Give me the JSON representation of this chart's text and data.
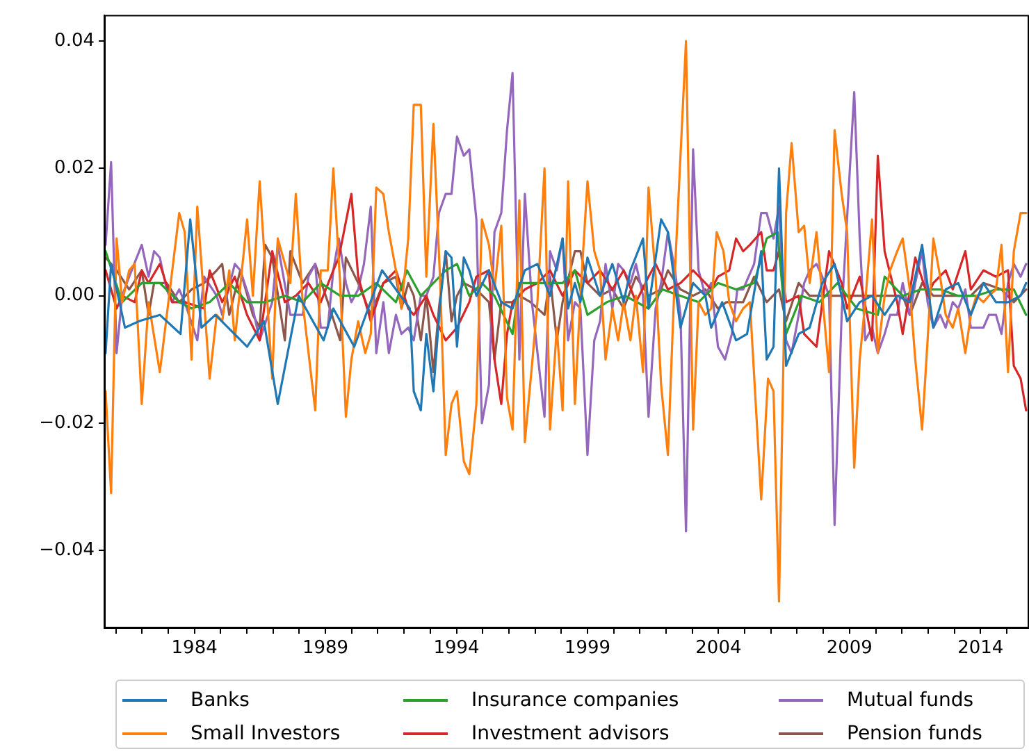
{
  "chart_data": {
    "type": "line",
    "xlim": [
      1980.56,
      2015.85
    ],
    "ylim": [
      -0.0522,
      0.0441
    ],
    "xticks": [
      {
        "value": 1981,
        "label": null
      },
      {
        "value": 1982,
        "label": null
      },
      {
        "value": 1983,
        "label": null
      },
      1984,
      {
        "value": 1985,
        "label": null
      },
      {
        "value": 1986,
        "label": null
      },
      {
        "value": 1987,
        "label": null
      },
      {
        "value": 1988,
        "label": null
      },
      1989,
      {
        "value": 1990,
        "label": null
      },
      {
        "value": 1991,
        "label": null
      },
      {
        "value": 1992,
        "label": null
      },
      {
        "value": 1993,
        "label": null
      },
      1994,
      {
        "value": 1995,
        "label": null
      },
      {
        "value": 1996,
        "label": null
      },
      {
        "value": 1997,
        "label": null
      },
      {
        "value": 1998,
        "label": null
      },
      1999,
      {
        "value": 2000,
        "label": null
      },
      {
        "value": 2001,
        "label": null
      },
      {
        "value": 2002,
        "label": null
      },
      {
        "value": 2003,
        "label": null
      },
      2004,
      {
        "value": 2005,
        "label": null
      },
      {
        "value": 2006,
        "label": null
      },
      {
        "value": 2007,
        "label": null
      },
      {
        "value": 2008,
        "label": null
      },
      2009,
      {
        "value": 2010,
        "label": null
      },
      {
        "value": 2011,
        "label": null
      },
      {
        "value": 2012,
        "label": null
      },
      {
        "value": 2013,
        "label": null
      },
      2014,
      {
        "value": 2015,
        "label": null
      }
    ],
    "yticks": [
      {
        "value": -0.04,
        "label": "−0.04"
      },
      {
        "value": -0.02,
        "label": "−0.02"
      },
      {
        "value": 0,
        "label": "0.00"
      },
      {
        "value": 0.02,
        "label": "0.02"
      },
      {
        "value": 0.04,
        "label": "0.04"
      }
    ],
    "legend": "bottom",
    "series": [
      {
        "name": "Banks",
        "color": "#1f77b4",
        "x": [
          1980.61,
          1980.82,
          1981.35,
          1981.88,
          1982.68,
          1983.47,
          1983.84,
          1984.27,
          1984.8,
          1986.01,
          1986.65,
          1987.18,
          1987.98,
          1988.93,
          1989.3,
          1990.1,
          1991.16,
          1992.22,
          1992.37,
          1992.64,
          1992.85,
          1993.12,
          1993.38,
          1993.59,
          1993.81,
          1994.02,
          1994.28,
          1994.49,
          1994.76,
          1995.24,
          1995.71,
          1996.14,
          1996.61,
          1997.09,
          1997.57,
          1998.05,
          1998.26,
          1998.52,
          1998.73,
          1999.0,
          1999.48,
          1999.95,
          2000.38,
          2000.64,
          2001.12,
          2001.33,
          2001.81,
          2002.07,
          2002.55,
          2003.03,
          2003.5,
          2003.72,
          2004.14,
          2004.67,
          2005.09,
          2005.63,
          2005.84,
          2006.1,
          2006.31,
          2006.58,
          2007.06,
          2007.48,
          2007.96,
          2008.43,
          2008.91,
          2009.39,
          2009.86,
          2010.34,
          2010.82,
          2011.3,
          2011.77,
          2012.2,
          2012.67,
          2013.15,
          2013.63,
          2014.11,
          2014.59,
          2015.05,
          2015.53,
          2015.74
        ],
        "values": [
          -0.009,
          0.005,
          -0.005,
          -0.004,
          -0.003,
          -0.006,
          0.012,
          -0.005,
          -0.003,
          -0.008,
          -0.004,
          -0.017,
          0.0,
          -0.007,
          -0.002,
          -0.008,
          0.004,
          -0.002,
          -0.015,
          -0.018,
          -0.006,
          -0.015,
          -0.001,
          0.007,
          0.006,
          -0.008,
          0.006,
          0.004,
          0,
          0.004,
          -0.001,
          -0.002,
          0.004,
          0.005,
          0,
          0.009,
          -0.002,
          0.002,
          -0.001,
          0.006,
          0,
          0.005,
          -0.001,
          0.004,
          0.009,
          -0.002,
          0.012,
          0.01,
          -0.005,
          0.002,
          0,
          -0.005,
          -0.001,
          -0.007,
          -0.006,
          0.007,
          -0.01,
          -0.008,
          0.02,
          -0.011,
          -0.006,
          -0.005,
          0.002,
          0.005,
          -0.004,
          -0.001,
          0,
          -0.003,
          0,
          -0.001,
          0.008,
          -0.005,
          0.001,
          0.002,
          -0.003,
          0.002,
          -0.001,
          -0.001,
          0,
          0.002
        ]
      },
      {
        "name": "Small Investors",
        "color": "#ff7f0e",
        "x": [
          1980.61,
          1980.82,
          1981.03,
          1981.24,
          1981.51,
          1981.72,
          1981.99,
          1982.25,
          1982.68,
          1983.42,
          1983.63,
          1983.89,
          1984.11,
          1984.58,
          1984.85,
          1985.06,
          1985.33,
          1985.54,
          1986.01,
          1986.23,
          1986.49,
          1986.97,
          1987.18,
          1987.66,
          1987.87,
          1988.13,
          1988.61,
          1988.82,
          1989.09,
          1989.3,
          1989.56,
          1989.78,
          1989.99,
          1990.25,
          1990.52,
          1990.73,
          1990.94,
          1991.21,
          1991.42,
          1991.69,
          1991.9,
          1992.16,
          1992.37,
          1992.64,
          1992.85,
          1993.12,
          1993.38,
          1993.59,
          1993.81,
          1994.02,
          1994.28,
          1994.49,
          1994.76,
          1994.97,
          1995.24,
          1995.45,
          1995.71,
          1995.93,
          1996.14,
          1996.4,
          1996.61,
          1996.88,
          1997.09,
          1997.36,
          1997.57,
          1997.83,
          1998.05,
          1998.26,
          1998.52,
          1998.73,
          1999.0,
          1999.26,
          1999.48,
          1999.69,
          1999.95,
          2000.17,
          2000.38,
          2000.64,
          2000.85,
          2001.12,
          2001.33,
          2001.6,
          2001.81,
          2002.07,
          2002.34,
          2002.76,
          2003.03,
          2003.24,
          2003.5,
          2003.72,
          2003.93,
          2004.19,
          2004.41,
          2004.67,
          2004.94,
          2005.2,
          2005.63,
          2005.89,
          2006.1,
          2006.31,
          2006.58,
          2006.79,
          2007.06,
          2007.27,
          2007.48,
          2007.74,
          2007.96,
          2008.22,
          2008.43,
          2008.7,
          2008.91,
          2009.18,
          2009.39,
          2009.6,
          2009.86,
          2010.08,
          2010.34,
          2010.55,
          2010.82,
          2011.03,
          2011.3,
          2011.51,
          2011.77,
          2011.98,
          2012.2,
          2012.46,
          2012.67,
          2012.94,
          2013.15,
          2013.42,
          2013.63,
          2013.84,
          2014.11,
          2014.32,
          2014.59,
          2014.8,
          2015.05,
          2015.27,
          2015.53,
          2015.74
        ],
        "values": [
          -0.015,
          -0.031,
          0.009,
          -0.001,
          0.004,
          0.005,
          -0.017,
          -0.001,
          -0.012,
          0.013,
          0.01,
          -0.01,
          0.014,
          -0.013,
          -0.003,
          -0.004,
          0.004,
          -0.007,
          0.012,
          0,
          0.018,
          -0.013,
          0.009,
          0.002,
          0.016,
          -0.001,
          -0.018,
          0.004,
          0.004,
          0.02,
          0.002,
          -0.019,
          -0.01,
          -0.004,
          -0.009,
          -0.006,
          0.017,
          0.016,
          0.01,
          0.004,
          -0.002,
          0.009,
          0.03,
          0.03,
          0.003,
          0.027,
          0.002,
          -0.025,
          -0.017,
          -0.015,
          -0.026,
          -0.028,
          -0.017,
          0.012,
          0.008,
          0.001,
          0.011,
          -0.016,
          -0.021,
          0.015,
          -0.023,
          -0.011,
          -0.001,
          0.02,
          -0.021,
          -0.005,
          -0.018,
          0.018,
          -0.017,
          0,
          0.018,
          0.007,
          0.004,
          -0.01,
          -0.002,
          -0.007,
          -0.001,
          -0.007,
          0,
          -0.012,
          0.017,
          0.003,
          -0.014,
          -0.025,
          0.004,
          0.04,
          -0.021,
          -0.001,
          -0.003,
          -0.002,
          0.01,
          0.007,
          -0.001,
          -0.004,
          -0.002,
          -0.001,
          -0.032,
          -0.013,
          -0.015,
          -0.048,
          0.013,
          0.024,
          0.01,
          0.011,
          0.002,
          0.01,
          0,
          -0.012,
          0.026,
          0.016,
          0.01,
          -0.027,
          -0.01,
          -0.001,
          0.012,
          -0.009,
          0,
          0.004,
          0.007,
          0.009,
          0.001,
          -0.01,
          -0.021,
          -0.007,
          0.009,
          0.003,
          -0.003,
          -0.005,
          -0.002,
          -0.009,
          -0.003,
          0,
          -0.001,
          0,
          0.001,
          0.008,
          -0.012,
          0.007,
          0.013,
          0.013
        ]
      },
      {
        "name": "Insurance companies",
        "color": "#2ca02c",
        "x": [
          1980.61,
          1981.24,
          1981.99,
          1982.68,
          1983.42,
          1983.89,
          1984.58,
          1985.33,
          1986.01,
          1986.7,
          1987.45,
          1988.13,
          1988.82,
          1989.56,
          1990.25,
          1990.94,
          1991.69,
          1992.11,
          1992.64,
          1993.12,
          1993.59,
          1994.02,
          1994.49,
          1994.97,
          1995.45,
          1996.14,
          1996.4,
          1997.09,
          1997.57,
          1998.05,
          1998.52,
          1999.0,
          1999.74,
          2000.43,
          2001.33,
          2001.86,
          2002.55,
          2003.24,
          2003.98,
          2004.67,
          2005.36,
          2005.84,
          2006.26,
          2006.58,
          2007.16,
          2007.85,
          2008.54,
          2009.28,
          2010.08,
          2010.34,
          2011.03,
          2011.72,
          2012.46,
          2013.15,
          2013.84,
          2014.59,
          2015.27,
          2015.74
        ],
        "values": [
          0.007,
          -0.001,
          0.002,
          0.002,
          -0.001,
          -0.002,
          -0.001,
          0.002,
          -0.001,
          -0.001,
          0,
          -0.001,
          0.002,
          0,
          0,
          0.002,
          -0.001,
          0.004,
          0,
          0.002,
          0.004,
          0.005,
          0,
          0.002,
          0,
          -0.006,
          0.002,
          0.002,
          0.002,
          0.002,
          0.004,
          -0.003,
          -0.001,
          0,
          -0.002,
          0.001,
          0,
          -0.001,
          0.002,
          0.001,
          0.002,
          0.009,
          0.01,
          -0.006,
          0,
          -0.001,
          0.002,
          -0.002,
          -0.003,
          0.003,
          0,
          0.001,
          0.001,
          0,
          0,
          0.001,
          0.001,
          -0.003
        ]
      },
      {
        "name": "Investment advisors",
        "color": "#d62728",
        "x": [
          1980.61,
          1981.03,
          1981.24,
          1981.72,
          1981.99,
          1982.25,
          1982.68,
          1983.15,
          1983.63,
          1984.37,
          1984.58,
          1985.06,
          1985.54,
          1986.01,
          1986.49,
          1986.97,
          1987.45,
          1987.87,
          1988.35,
          1988.82,
          1989.3,
          1989.51,
          1989.99,
          1990.25,
          1990.73,
          1991.21,
          1991.69,
          1992.16,
          1992.37,
          1992.85,
          1993.12,
          1993.59,
          1994.02,
          1994.49,
          1994.76,
          1995.24,
          1995.45,
          1995.71,
          1995.93,
          1996.14,
          1996.61,
          1997.09,
          1997.57,
          1998.05,
          1998.52,
          1999.0,
          1999.48,
          1999.95,
          2000.38,
          2000.85,
          2001.33,
          2001.6,
          2002.07,
          2002.55,
          2003.03,
          2003.5,
          2003.72,
          2003.98,
          2004.41,
          2004.67,
          2004.94,
          2005.2,
          2005.63,
          2005.84,
          2006.1,
          2006.31,
          2006.58,
          2007.06,
          2007.27,
          2007.74,
          2008.22,
          2008.7,
          2008.91,
          2009.39,
          2009.86,
          2010.08,
          2010.34,
          2010.82,
          2011.03,
          2011.51,
          2011.98,
          2012.2,
          2012.67,
          2012.94,
          2013.42,
          2013.63,
          2014.11,
          2014.59,
          2015.05,
          2015.27,
          2015.53,
          2015.74
        ],
        "values": [
          0.004,
          -0.002,
          0,
          -0.001,
          0.004,
          0.002,
          0.005,
          -0.001,
          -0.001,
          -0.002,
          0.004,
          -0.001,
          0.003,
          -0.003,
          -0.007,
          0.007,
          -0.001,
          0,
          0.002,
          -0.001,
          0.004,
          0.006,
          0.016,
          0.003,
          -0.004,
          0.002,
          0.004,
          -0.002,
          -0.003,
          0,
          -0.003,
          -0.007,
          -0.005,
          -0.001,
          0.003,
          0.004,
          -0.01,
          -0.017,
          -0.006,
          -0.001,
          0.001,
          0.002,
          0.004,
          0,
          0.004,
          0.002,
          0.004,
          0.001,
          0.004,
          -0.001,
          0.003,
          0.005,
          0.001,
          0.002,
          0.004,
          0.002,
          0.001,
          0.003,
          0.004,
          0.009,
          0.007,
          0.008,
          0.01,
          0.004,
          0.004,
          0.007,
          -0.001,
          0,
          -0.006,
          -0.008,
          0.007,
          0.002,
          -0.002,
          0.003,
          -0.007,
          0.022,
          0.007,
          -0.001,
          -0.006,
          0.006,
          0,
          0.002,
          0.004,
          0.001,
          0.007,
          0.001,
          0.004,
          0.003,
          0.004,
          -0.011,
          -0.013,
          -0.018
        ]
      },
      {
        "name": "Mutual funds",
        "color": "#9467bd",
        "x": [
          1980.61,
          1980.82,
          1981.03,
          1981.24,
          1981.51,
          1981.99,
          1982.25,
          1982.46,
          1982.68,
          1982.94,
          1983.15,
          1983.42,
          1983.63,
          1984.11,
          1984.37,
          1984.85,
          1985.06,
          1985.54,
          1985.75,
          1986.23,
          1986.49,
          1986.97,
          1987.18,
          1987.66,
          1988.13,
          1988.35,
          1988.61,
          1988.82,
          1989.09,
          1989.3,
          1989.51,
          1989.78,
          1989.99,
          1990.25,
          1990.47,
          1990.73,
          1990.94,
          1991.21,
          1991.42,
          1991.69,
          1991.9,
          1992.16,
          1992.37,
          1992.64,
          1992.85,
          1993.12,
          1993.33,
          1993.59,
          1993.81,
          1994.02,
          1994.28,
          1994.49,
          1994.76,
          1994.97,
          1995.24,
          1995.45,
          1995.71,
          1995.93,
          1996.14,
          1996.4,
          1996.61,
          1996.88,
          1997.36,
          1997.57,
          1997.83,
          1998.05,
          1998.26,
          1998.52,
          1998.73,
          1999.0,
          1999.26,
          1999.48,
          1999.69,
          1999.95,
          2000.17,
          2000.38,
          2000.64,
          2000.85,
          2001.12,
          2001.33,
          2001.6,
          2001.81,
          2002.07,
          2002.34,
          2002.55,
          2002.76,
          2003.03,
          2003.24,
          2003.5,
          2003.72,
          2003.98,
          2004.25,
          2004.51,
          2004.72,
          2004.94,
          2005.15,
          2005.36,
          2005.63,
          2005.84,
          2006.1,
          2006.31,
          2006.58,
          2006.79,
          2007.06,
          2007.27,
          2007.48,
          2007.74,
          2007.96,
          2008.22,
          2008.43,
          2008.7,
          2009.18,
          2009.39,
          2009.6,
          2009.86,
          2010.08,
          2010.34,
          2010.55,
          2010.82,
          2011.03,
          2011.3,
          2011.51,
          2011.77,
          2011.98,
          2012.2,
          2012.46,
          2012.67,
          2012.94,
          2013.15,
          2013.42,
          2013.63,
          2013.84,
          2014.11,
          2014.32,
          2014.59,
          2014.8,
          2015.05,
          2015.27,
          2015.53,
          2015.74
        ],
        "values": [
          0.008,
          0.021,
          -0.009,
          0,
          0.003,
          0.008,
          0.003,
          0.007,
          0.006,
          0.001,
          -0.001,
          0.001,
          -0.001,
          -0.007,
          0.003,
          0,
          -0.003,
          0.005,
          0.004,
          -0.002,
          -0.007,
          -0.001,
          0.008,
          -0.003,
          -0.003,
          0.003,
          0.005,
          -0.005,
          -0.005,
          0.004,
          0.009,
          0.002,
          -0.001,
          0.001,
          0.005,
          0.014,
          -0.009,
          -0.001,
          -0.009,
          -0.003,
          -0.006,
          -0.005,
          -0.007,
          0,
          0,
          0.003,
          0.013,
          0.016,
          0.016,
          0.025,
          0.022,
          0.023,
          0.012,
          -0.02,
          -0.014,
          0.01,
          0.013,
          0.026,
          0.035,
          -0.01,
          0.016,
          -0.001,
          -0.019,
          0.007,
          0.004,
          0.009,
          -0.007,
          -0.001,
          -0.002,
          -0.025,
          -0.007,
          -0.004,
          0.005,
          -0.002,
          0.005,
          0.004,
          0.002,
          0.005,
          0,
          -0.019,
          -0.002,
          0.002,
          0.01,
          0.004,
          -0.003,
          -0.037,
          0.023,
          0.004,
          0,
          0.002,
          -0.008,
          -0.01,
          -0.006,
          0.001,
          0.001,
          0.003,
          0.005,
          0.013,
          0.013,
          0.009,
          0.014,
          -0.007,
          -0.009,
          -0.003,
          0.002,
          0.004,
          0.005,
          0.003,
          0,
          -0.036,
          -0.003,
          0.032,
          0.009,
          -0.007,
          -0.005,
          -0.009,
          -0.006,
          -0.003,
          -0.003,
          0.002,
          -0.003,
          0.002,
          0.007,
          -0.001,
          -0.005,
          -0.003,
          -0.005,
          -0.001,
          -0.002,
          0.001,
          -0.005,
          -0.005,
          -0.005,
          -0.003,
          -0.003,
          -0.006,
          0.002,
          0.005,
          0.003,
          0.005
        ]
      },
      {
        "name": "Pension funds",
        "color": "#8c564b",
        "x": [
          1980.61,
          1981.03,
          1981.51,
          1981.99,
          1982.25,
          1982.46,
          1982.94,
          1983.42,
          1983.89,
          1984.37,
          1984.85,
          1985.06,
          1985.33,
          1985.75,
          1986.23,
          1986.49,
          1986.7,
          1986.97,
          1987.45,
          1987.66,
          1988.13,
          1988.61,
          1989.09,
          1989.56,
          1989.78,
          1990.25,
          1990.73,
          1991.21,
          1991.69,
          1991.9,
          1992.16,
          1992.37,
          1992.64,
          1992.85,
          1993.12,
          1993.33,
          1993.59,
          1993.81,
          1994.02,
          1994.28,
          1994.76,
          1995.24,
          1995.45,
          1995.71,
          1996.14,
          1996.4,
          1996.83,
          1997.36,
          1997.57,
          1997.83,
          1998.05,
          1998.52,
          1998.73,
          1999.0,
          1999.48,
          1999.95,
          2000.38,
          2000.85,
          2001.33,
          2001.81,
          2002.07,
          2002.55,
          2003.03,
          2003.5,
          2003.98,
          2004.3,
          2004.94,
          2005.36,
          2005.84,
          2006.31,
          2006.58,
          2007.06,
          2007.48,
          2008.22,
          2008.91,
          2009.6,
          2010.34,
          2011.03,
          2011.3,
          2011.77,
          2012.2,
          2012.94,
          2013.63,
          2014.11,
          2014.8,
          2015.27,
          2015.74
        ],
        "values": [
          0.006,
          0.004,
          0.001,
          0.004,
          -0.003,
          0.002,
          0.002,
          -0.001,
          0.001,
          0.002,
          0.004,
          0.005,
          -0.003,
          0.004,
          -0.003,
          -0.005,
          0.008,
          0.006,
          -0.007,
          0.007,
          0.002,
          0.005,
          -0.001,
          -0.007,
          0.006,
          0.002,
          -0.003,
          0.002,
          0.003,
          -0.002,
          0.002,
          0,
          -0.007,
          0,
          -0.012,
          -0.002,
          0.007,
          -0.004,
          0,
          0.002,
          0.001,
          -0.001,
          -0.01,
          -0.001,
          -0.001,
          0,
          -0.001,
          -0.003,
          0.003,
          -0.007,
          -0.001,
          0.007,
          0.007,
          0.002,
          0,
          0.001,
          -0.002,
          0.003,
          0,
          0.001,
          0.004,
          0.001,
          0,
          0.001,
          -0.002,
          -0.001,
          -0.001,
          0.003,
          -0.001,
          0.001,
          -0.004,
          0.002,
          0,
          0,
          0,
          0,
          0,
          0,
          -0.003,
          0.002,
          0,
          0,
          0,
          0.002,
          0.001,
          -0.001,
          0.001
        ]
      }
    ]
  }
}
